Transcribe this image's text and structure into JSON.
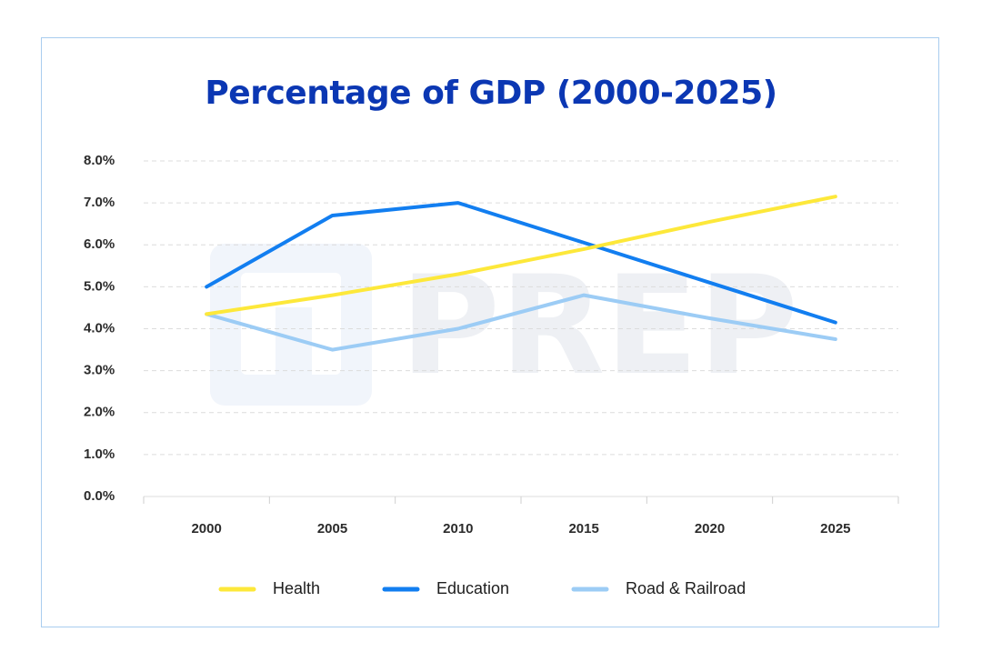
{
  "chart_data": {
    "type": "line",
    "title": "Percentage of GDP (2000-2025)",
    "x": [
      "2000",
      "2005",
      "2010",
      "2015",
      "2020",
      "2025"
    ],
    "y_ticks": [
      "0.0%",
      "1.0%",
      "2.0%",
      "3.0%",
      "4.0%",
      "5.0%",
      "6.0%",
      "7.0%",
      "8.0%"
    ],
    "ylim": [
      0,
      8
    ],
    "grid": true,
    "legend_position": "bottom",
    "series": [
      {
        "name": "Health",
        "color": "#fde83a",
        "values": [
          4.35,
          4.8,
          5.3,
          5.9,
          6.55,
          7.15
        ]
      },
      {
        "name": "Education",
        "color": "#127ef0",
        "values": [
          5.0,
          6.7,
          7.0,
          6.05,
          5.1,
          4.15
        ]
      },
      {
        "name": "Road & Railroad",
        "color": "#9cccf5",
        "values": [
          4.35,
          3.5,
          4.0,
          4.8,
          4.25,
          3.75
        ]
      }
    ]
  },
  "watermark": {
    "text": "PREP",
    "icon": "prep-logo-icon"
  }
}
